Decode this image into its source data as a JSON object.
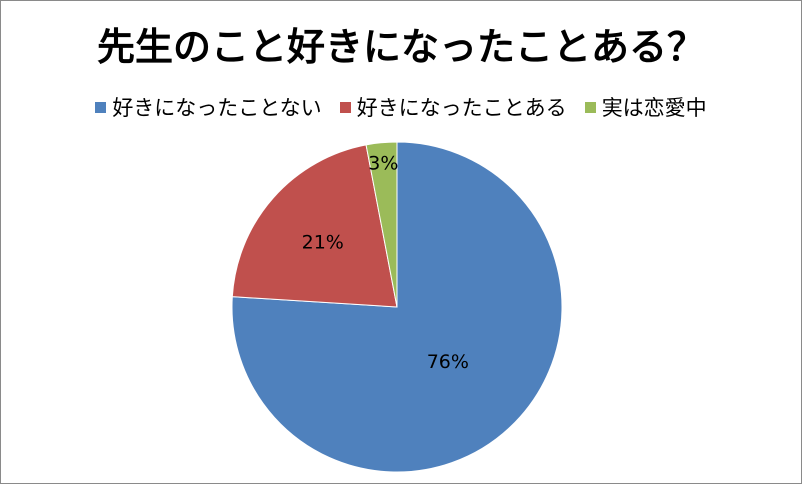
{
  "chart_data": {
    "type": "pie",
    "title": "先生のこと好きになったことある？",
    "legend_position": "top",
    "start_angle": "12 o'clock, clockwise",
    "slices": [
      {
        "name": "好きになったことない",
        "value": 76,
        "label": "76%",
        "color": "#4f81bd"
      },
      {
        "name": "好きになったことある",
        "value": 21,
        "label": "21%",
        "color": "#c0504d"
      },
      {
        "name": "実は恋愛中",
        "value": 3,
        "label": "3%",
        "color": "#9bbb59"
      }
    ]
  }
}
